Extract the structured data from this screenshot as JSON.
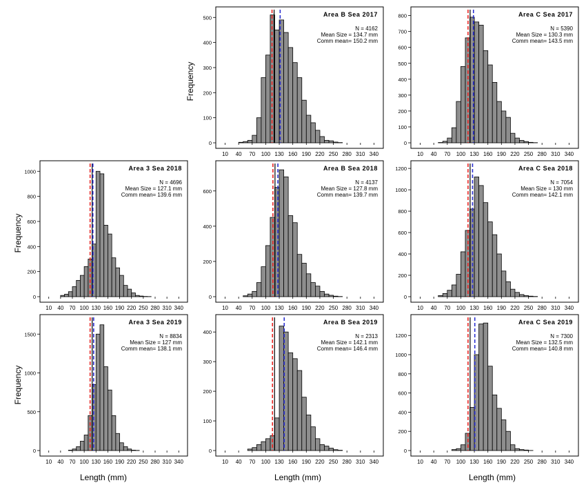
{
  "chart_data": [
    {
      "type": "bar",
      "title": "Area B Sea 2017",
      "stats": {
        "n": "N = 4162",
        "mean": "Mean Size = 134.7 mm",
        "comm": "Comm mean= 150.2 mm"
      },
      "xlim": [
        0,
        350
      ],
      "ylim": [
        0,
        520
      ],
      "yticks": [
        0,
        100,
        200,
        300,
        400,
        500
      ],
      "xticks": [
        10,
        40,
        70,
        100,
        130,
        160,
        190,
        220,
        250,
        280,
        310,
        340
      ],
      "bins_start": 0,
      "bin_width": 10,
      "values": [
        0,
        0,
        0,
        0,
        2,
        5,
        10,
        30,
        100,
        260,
        350,
        510,
        450,
        490,
        440,
        380,
        320,
        260,
        170,
        110,
        80,
        50,
        25,
        10,
        8,
        3,
        1,
        0,
        0,
        0,
        0,
        0,
        0,
        0,
        0
      ],
      "mean_line": 114,
      "comm_line": 132
    },
    {
      "type": "bar",
      "title": "Area C Sea 2017",
      "stats": {
        "n": "N = 5390",
        "mean": "Mean Size = 130.3 mm",
        "comm": "Comm mean= 143.5 mm"
      },
      "xlim": [
        0,
        350
      ],
      "ylim": [
        0,
        820
      ],
      "yticks": [
        0,
        100,
        200,
        300,
        400,
        500,
        600,
        700,
        800
      ],
      "xticks": [
        10,
        40,
        70,
        100,
        130,
        160,
        190,
        220,
        250,
        280,
        310,
        340
      ],
      "bins_start": 0,
      "bin_width": 10,
      "values": [
        0,
        0,
        0,
        0,
        0,
        2,
        10,
        30,
        95,
        260,
        480,
        660,
        790,
        760,
        740,
        580,
        490,
        380,
        260,
        200,
        160,
        60,
        30,
        15,
        8,
        3,
        1,
        0,
        0,
        0,
        0,
        0,
        0,
        0,
        0
      ],
      "mean_line": 116,
      "comm_line": 128
    },
    {
      "type": "bar",
      "title": "Area 3 Sea 2018",
      "stats": {
        "n": "N = 4696",
        "mean": "Mean Size = 127.1 mm",
        "comm": "Comm mean= 139.6 mm"
      },
      "xlim": [
        0,
        350
      ],
      "ylim": [
        0,
        1040
      ],
      "yticks": [
        0,
        200,
        400,
        600,
        800,
        1000
      ],
      "xticks": [
        10,
        40,
        70,
        100,
        130,
        160,
        190,
        220,
        250,
        280,
        310,
        340
      ],
      "bins_start": 0,
      "bin_width": 10,
      "values": [
        0,
        0,
        0,
        0,
        10,
        20,
        40,
        80,
        130,
        170,
        240,
        300,
        420,
        1000,
        980,
        570,
        500,
        310,
        230,
        170,
        90,
        60,
        30,
        10,
        5,
        2,
        1,
        0,
        0,
        0,
        0,
        0,
        0,
        0,
        0
      ],
      "mean_line": 115,
      "comm_line": 122
    },
    {
      "type": "bar",
      "title": "Area B Sea 2018",
      "stats": {
        "n": "N = 4137",
        "mean": "Mean Size = 127.8 mm",
        "comm": "Comm mean= 139.7 mm"
      },
      "xlim": [
        0,
        350
      ],
      "ylim": [
        0,
        740
      ],
      "yticks": [
        0,
        200,
        400,
        600
      ],
      "xticks": [
        10,
        40,
        70,
        100,
        130,
        160,
        190,
        220,
        250,
        280,
        310,
        340
      ],
      "bins_start": 0,
      "bin_width": 10,
      "values": [
        0,
        0,
        0,
        0,
        0,
        5,
        15,
        30,
        80,
        170,
        290,
        450,
        620,
        720,
        680,
        460,
        420,
        240,
        190,
        130,
        80,
        60,
        30,
        15,
        8,
        3,
        1,
        0,
        0,
        0,
        0,
        0,
        0,
        0,
        0
      ],
      "mean_line": 116,
      "comm_line": 127
    },
    {
      "type": "bar",
      "title": "Area C Sea 2018",
      "stats": {
        "n": "N = 7054",
        "mean": "Mean Size = 130 mm",
        "comm": "Comm mean= 142.1 mm"
      },
      "xlim": [
        0,
        350
      ],
      "ylim": [
        0,
        1220
      ],
      "yticks": [
        0,
        200,
        400,
        600,
        800,
        1000,
        1200
      ],
      "xticks": [
        10,
        40,
        70,
        100,
        130,
        160,
        190,
        220,
        250,
        280,
        310,
        340
      ],
      "bins_start": 0,
      "bin_width": 10,
      "values": [
        0,
        0,
        0,
        0,
        0,
        10,
        30,
        60,
        110,
        210,
        420,
        620,
        820,
        1120,
        1040,
        880,
        700,
        580,
        400,
        240,
        140,
        70,
        40,
        20,
        10,
        5,
        2,
        0,
        0,
        0,
        0,
        0,
        0,
        0,
        0
      ],
      "mean_line": 116,
      "comm_line": 126
    },
    {
      "type": "bar",
      "title": "Area 3 Sea 2019",
      "stats": {
        "n": "N = 8834",
        "mean": "Mean Size = 127 mm",
        "comm": "Comm mean= 138.1 mm"
      },
      "xlim": [
        0,
        350
      ],
      "ylim": [
        0,
        1680
      ],
      "yticks": [
        0,
        500,
        1000,
        1500
      ],
      "xticks": [
        10,
        40,
        70,
        100,
        130,
        160,
        190,
        220,
        250,
        280,
        310,
        340
      ],
      "bins_start": 0,
      "bin_width": 10,
      "values": [
        0,
        0,
        0,
        0,
        0,
        0,
        5,
        20,
        50,
        120,
        200,
        450,
        850,
        1500,
        1620,
        1080,
        780,
        450,
        220,
        100,
        50,
        20,
        5,
        2,
        0,
        0,
        0,
        0,
        0,
        0,
        0,
        0,
        0,
        0,
        0
      ],
      "mean_line": 115,
      "comm_line": 124
    },
    {
      "type": "bar",
      "title": "Area B Sea 2019",
      "stats": {
        "n": "N = 2313",
        "mean": "Mean Size = 142.1 mm",
        "comm": "Comm mean= 146.4 mm"
      },
      "xlim": [
        0,
        350
      ],
      "ylim": [
        0,
        440
      ],
      "yticks": [
        0,
        100,
        200,
        300,
        400
      ],
      "xticks": [
        10,
        40,
        70,
        100,
        130,
        160,
        190,
        220,
        250,
        280,
        310,
        340
      ],
      "bins_start": 0,
      "bin_width": 10,
      "values": [
        0,
        0,
        0,
        0,
        0,
        0,
        5,
        10,
        20,
        30,
        40,
        50,
        110,
        420,
        400,
        330,
        310,
        270,
        180,
        120,
        80,
        40,
        20,
        15,
        8,
        3,
        1,
        0,
        0,
        0,
        0,
        0,
        0,
        0,
        0
      ],
      "mean_line": 115,
      "comm_line": 141
    },
    {
      "type": "bar",
      "title": "Area C Sea 2019",
      "stats": {
        "n": "N = 7300",
        "mean": "Mean Size = 132.5 mm",
        "comm": "Comm mean= 140.8 mm"
      },
      "xlim": [
        0,
        350
      ],
      "ylim": [
        0,
        1360
      ],
      "yticks": [
        0,
        200,
        400,
        600,
        800,
        1000,
        1200
      ],
      "xticks": [
        10,
        40,
        70,
        100,
        130,
        160,
        190,
        220,
        250,
        280,
        310,
        340
      ],
      "bins_start": 0,
      "bin_width": 10,
      "values": [
        0,
        0,
        0,
        0,
        0,
        0,
        0,
        0,
        10,
        20,
        60,
        180,
        450,
        1000,
        1320,
        1330,
        880,
        580,
        440,
        320,
        200,
        60,
        20,
        10,
        5,
        1,
        0,
        0,
        0,
        0,
        0,
        0,
        0,
        0,
        0
      ],
      "mean_line": 116,
      "comm_line": 131
    }
  ],
  "labels": {
    "ylabel": "Frequency",
    "xlabel": "Length  (mm)"
  },
  "colors": {
    "bar_fill": "#8e8e8e",
    "bar_stroke": "#000000",
    "mean_line": "#e8221f",
    "comm_line": "#2a2fd0",
    "black_line": "#000000"
  }
}
